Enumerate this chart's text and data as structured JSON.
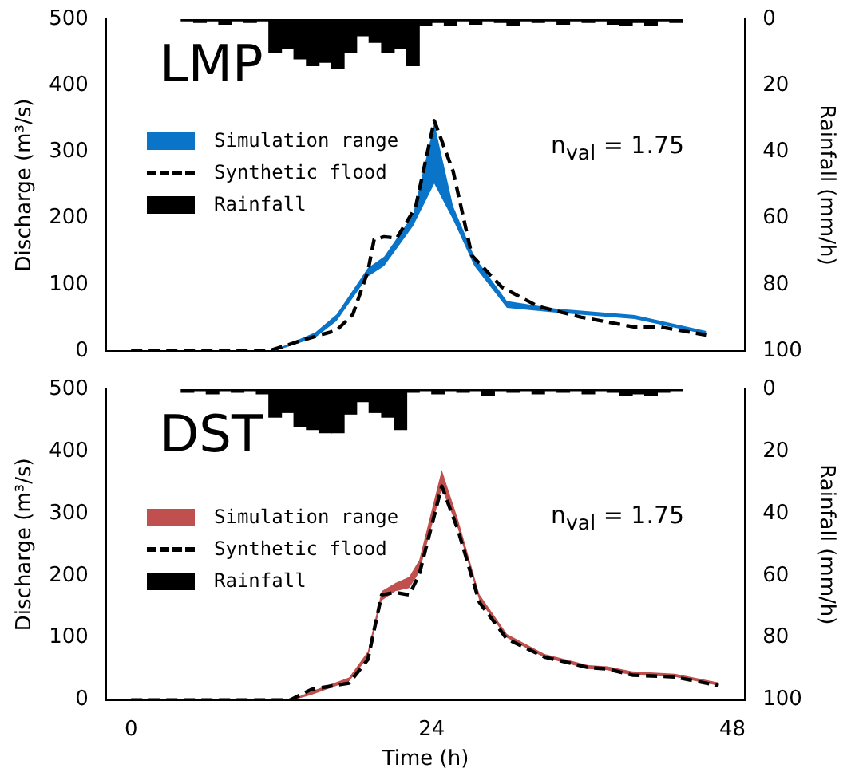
{
  "chart_data": [
    {
      "type": "line",
      "title": "LMP",
      "ylabel": "Discharge (m³/s)",
      "y2label": "Rainfall (mm/h)",
      "annotations": [
        "n$_{val}$ = 1.75"
      ],
      "legend": "top left",
      "tick_labels": "y",
      "xlim": [
        -2,
        49
      ],
      "xticks": [
        0,
        24,
        48
      ],
      "ylim": [
        0,
        500
      ],
      "yticks": [
        0,
        100,
        200,
        300,
        400,
        500
      ],
      "y2lim": [
        100,
        0
      ],
      "y2ticks": [
        0,
        20,
        40,
        60,
        80,
        100
      ],
      "series": [
        {
          "name": "Simulation range",
          "type": "area",
          "color": "#0a74c8",
          "x": [
            11.5,
            14.7,
            16.4,
            18.9,
            20.2,
            22.5,
            24.2,
            25.7,
            27.4,
            30,
            33.8,
            40.2,
            45.9
          ],
          "values": [
            null,
            null,
            null,
            null,
            null,
            null,
            null,
            null,
            null,
            null,
            null,
            null,
            null
          ],
          "lower": [
            0,
            20,
            45,
            112,
            128,
            188,
            252,
            198,
            128,
            65,
            58,
            48,
            25
          ],
          "upper": [
            2,
            28,
            55,
            125,
            142,
            205,
            343,
            218,
            142,
            75,
            64,
            54,
            30
          ]
        },
        {
          "name": "Synthetic flood",
          "type": "line",
          "color": "#000000",
          "line_style": "dashed",
          "x": [
            0,
            11,
            13.8,
            16.4,
            17.7,
            18.9,
            19.4,
            20.2,
            21.2,
            22.7,
            24.2,
            25.7,
            27.2,
            29.6,
            32.5,
            35.9,
            40.2,
            42.3,
            45.9
          ],
          "values": [
            0,
            0,
            17,
            31,
            55,
            120,
            168,
            172,
            170,
            216,
            347,
            271,
            144,
            96,
            67,
            51,
            36,
            36,
            24
          ]
        },
        {
          "name": "Rainfall",
          "type": "bar",
          "axis": "y2",
          "color": "#000000",
          "x": [
            4.5,
            5.5,
            6.5,
            7.5,
            8.5,
            9.5,
            10.5,
            11.5,
            12.5,
            13.5,
            14.5,
            15.5,
            16.5,
            17.5,
            18.5,
            19.5,
            20.5,
            21.5,
            22.5,
            23.5,
            24.5,
            25.5,
            26.5,
            27.5,
            28.5,
            29.5,
            30.5,
            31.5,
            32.5,
            33.5,
            34.5,
            35.5,
            36.5,
            37.5,
            38.5,
            39.5,
            40.5,
            41.5,
            42.5,
            43.5
          ],
          "values": [
            0.5,
            1,
            0.5,
            1.5,
            0.5,
            1,
            0.5,
            10,
            9,
            12,
            14,
            13,
            15,
            10,
            5,
            7,
            10,
            9,
            14,
            2,
            1,
            2,
            0.5,
            1.5,
            0.5,
            1,
            2,
            0.5,
            1,
            0.5,
            1.5,
            0.5,
            1,
            0.5,
            1.5,
            2,
            1,
            2,
            0.5,
            1
          ]
        }
      ]
    },
    {
      "type": "line",
      "title": "DST",
      "xlabel": "Time (h)",
      "ylabel": "Discharge (m³/s)",
      "y2label": "Rainfall (mm/h)",
      "annotations": [
        "n$_{val}$ = 1.75"
      ],
      "legend": "left",
      "xlim": [
        -2,
        49
      ],
      "xticks": [
        0,
        24,
        48
      ],
      "ylim": [
        0,
        500
      ],
      "yticks": [
        0,
        100,
        200,
        300,
        400,
        500
      ],
      "y2lim": [
        100,
        0
      ],
      "y2ticks": [
        0,
        20,
        40,
        60,
        80,
        100
      ],
      "series": [
        {
          "name": "Simulation range",
          "type": "area",
          "color": "#c0504d",
          "x": [
            13,
            14.4,
            17.4,
            18.9,
            20,
            21.1,
            22.2,
            23,
            24.8,
            26.1,
            27.8,
            30,
            33,
            36.5,
            38,
            40,
            43.4,
            46.9
          ],
          "values": [
            null,
            null,
            null,
            null,
            null,
            null,
            null,
            null,
            null,
            null,
            null,
            null,
            null,
            null,
            null,
            null,
            null,
            null
          ],
          "lower": [
            0,
            8,
            30,
            68,
            160,
            175,
            180,
            205,
            340,
            275,
            160,
            100,
            68,
            50,
            48,
            40,
            37,
            23
          ],
          "upper": [
            2,
            14,
            36,
            78,
            175,
            188,
            198,
            225,
            370,
            290,
            170,
            106,
            74,
            56,
            54,
            46,
            42,
            28
          ]
        },
        {
          "name": "Synthetic flood",
          "type": "line",
          "color": "#000000",
          "line_style": "dashed",
          "x": [
            0,
            12.7,
            14.4,
            17.4,
            18.9,
            20,
            21.1,
            22.2,
            23,
            24.8,
            26.1,
            27.8,
            30,
            33,
            36.5,
            38,
            40,
            43.4,
            46.9
          ],
          "values": [
            0,
            0,
            17,
            27,
            65,
            169,
            173,
            169,
            202,
            344,
            273,
            157,
            98,
            69,
            52,
            50,
            40,
            37,
            23
          ]
        },
        {
          "name": "Rainfall",
          "type": "bar",
          "axis": "y2",
          "color": "#000000",
          "x": [
            4.5,
            5.5,
            6.5,
            7.5,
            8.5,
            9.5,
            10.5,
            11.5,
            12.5,
            13.5,
            14.5,
            15.5,
            16.5,
            17.5,
            18.5,
            19.5,
            20.5,
            21.5,
            22.5,
            23.5,
            24.5,
            25.5,
            26.5,
            27.5,
            28.5,
            29.5,
            30.5,
            31.5,
            32.5,
            33.5,
            34.5,
            35.5,
            36.5,
            37.5,
            38.5,
            39.5,
            40.5,
            41.5,
            42.5,
            43.5
          ],
          "values": [
            1,
            0.5,
            1.5,
            0.5,
            1,
            0.5,
            1.5,
            9,
            7.5,
            12,
            13,
            14,
            14,
            8,
            4,
            7.5,
            9,
            13,
            1,
            0.5,
            1.5,
            0.5,
            1,
            0.5,
            2,
            0.5,
            1,
            0.5,
            1.5,
            0.5,
            1,
            0.5,
            1.5,
            0.5,
            1,
            2,
            1.5,
            2,
            1,
            0.5
          ]
        }
      ]
    }
  ]
}
